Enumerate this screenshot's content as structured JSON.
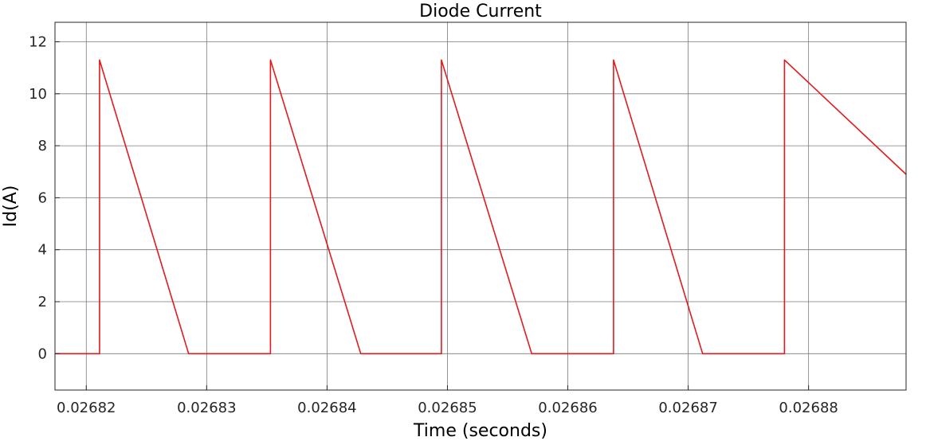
{
  "chart_data": {
    "type": "line",
    "title": "Diode Current",
    "xlabel": "Time (seconds)",
    "ylabel": "Id(A)",
    "xlim": [
      0.0268174,
      0.0268881
    ],
    "ylim": [
      -1.4,
      12.75
    ],
    "xticks": [
      0.02682,
      0.02683,
      0.02684,
      0.02685,
      0.02686,
      0.02687,
      0.02688
    ],
    "xtick_labels": [
      "0.02682",
      "0.02683",
      "0.02684",
      "0.02685",
      "0.02686",
      "0.02687",
      "0.02688"
    ],
    "yticks": [
      0,
      2,
      4,
      6,
      8,
      10,
      12
    ],
    "ytick_labels": [
      "0",
      "2",
      "4",
      "6",
      "8",
      "10",
      "12"
    ],
    "grid": true,
    "series": [
      {
        "color": "#e31a1c",
        "x": [
          0.0268174,
          0.0268211,
          0.0268211,
          0.0268285,
          0.0268353,
          0.0268353,
          0.0268428,
          0.0268495,
          0.0268495,
          0.026857,
          0.0268638,
          0.0268638,
          0.0268712,
          0.026878,
          0.026878,
          0.0268881
        ],
        "y": [
          0,
          0,
          11.3,
          0,
          0,
          11.3,
          0,
          0,
          11.3,
          0,
          0,
          11.3,
          0,
          0,
          11.3,
          6.9
        ]
      }
    ]
  }
}
